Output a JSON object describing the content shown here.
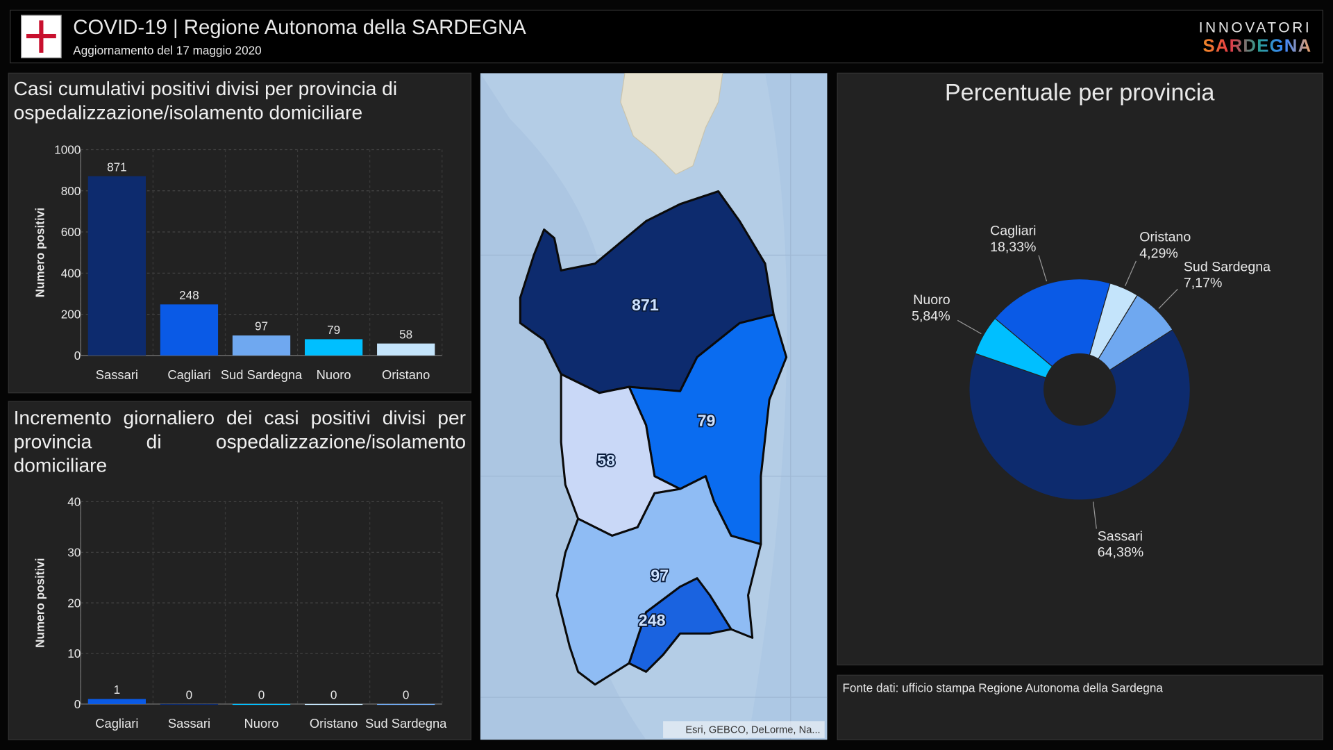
{
  "header": {
    "title": "COVID-19 | Regione Autonoma della SARDEGNA",
    "subtitle": "Aggiornamento del 17 maggio 2020",
    "brand_top": "INNOVATORI",
    "brand_bottom": "SARDEGNA"
  },
  "chart_data": [
    {
      "type": "bar",
      "title": "Casi cumulativi positivi divisi per provincia di ospedalizzazione/isolamento domiciliare",
      "y_label": "Numero positivi",
      "categories": [
        "Sassari",
        "Cagliari",
        "Sud Sardegna",
        "Nuoro",
        "Oristano"
      ],
      "values": [
        871,
        248,
        97,
        79,
        58
      ],
      "colors": [
        "#0d2b6e",
        "#0a5ae6",
        "#6fa8f0",
        "#00bfff",
        "#c4e4fb"
      ],
      "ylim": [
        0,
        1000
      ],
      "yticks": [
        0,
        200,
        400,
        600,
        800,
        1000
      ],
      "grid": true
    },
    {
      "type": "bar",
      "title": "Incremento giornaliero dei casi positivi divisi per provincia di ospedalizzazione/isolamento domiciliare",
      "y_label": "Numero positivi",
      "categories": [
        "Cagliari",
        "Sassari",
        "Nuoro",
        "Oristano",
        "Sud Sardegna"
      ],
      "values": [
        1,
        0,
        0,
        0,
        0
      ],
      "colors": [
        "#0a5ae6",
        "#0d2b6e",
        "#00bfff",
        "#c4e4fb",
        "#6fa8f0"
      ],
      "ylim": [
        0,
        40
      ],
      "yticks": [
        0,
        10,
        20,
        30,
        40
      ],
      "grid": true
    },
    {
      "type": "pie",
      "title": "Percentuale per provincia",
      "categories": [
        "Oristano",
        "Sud Sardegna",
        "Sassari",
        "Nuoro",
        "Cagliari"
      ],
      "values": [
        4.29,
        7.17,
        64.38,
        5.84,
        18.33
      ],
      "value_labels": [
        "4,29%",
        "7,17%",
        "64,38%",
        "5,84%",
        "18,33%"
      ],
      "colors": [
        "#c4e4fb",
        "#6fa8f0",
        "#0d2b6e",
        "#00bfff",
        "#0a5ae6"
      ]
    }
  ],
  "map": {
    "values": [
      871,
      79,
      58,
      97,
      248
    ],
    "attribution": "Esri, GEBCO, DeLorme, Na..."
  },
  "footer": {
    "source": "Fonte dati: ufficio stampa Regione Autonoma della Sardegna"
  }
}
